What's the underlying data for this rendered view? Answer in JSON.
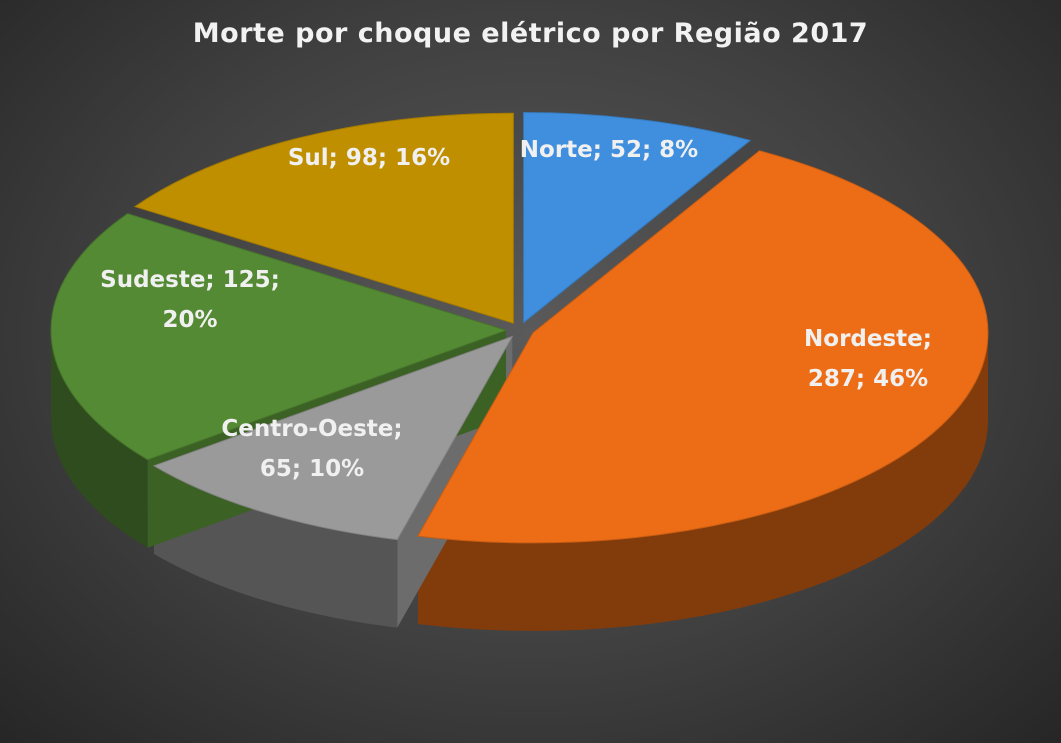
{
  "chart_data": {
    "type": "pie",
    "title": "Morte por choque elétrico por Região 2017",
    "labels_format": "Categoria; valor; percentual",
    "slices": [
      {
        "name": "Norte",
        "value": 52,
        "percent": "8%",
        "color": "#3f8fde",
        "label_lines": [
          "Norte; 52; 8%"
        ]
      },
      {
        "name": "Nordeste",
        "value": 287,
        "percent": "46%",
        "color": "#ed6d16",
        "label_lines": [
          "Nordeste;",
          "287; 46%"
        ]
      },
      {
        "name": "Centro-Oeste",
        "value": 65,
        "percent": "10%",
        "color": "#9a9a9a",
        "label_lines": [
          "Centro-Oeste;",
          "65; 10%"
        ]
      },
      {
        "name": "Sudeste",
        "value": 125,
        "percent": "20%",
        "color": "#548a34",
        "label_lines": [
          "Sudeste; 125;",
          "20%"
        ]
      },
      {
        "name": "Sul",
        "value": 98,
        "percent": "16%",
        "color": "#c08f00",
        "label_lines": [
          "Sul; 98; 16%"
        ]
      }
    ],
    "style": "3d-exploded"
  }
}
